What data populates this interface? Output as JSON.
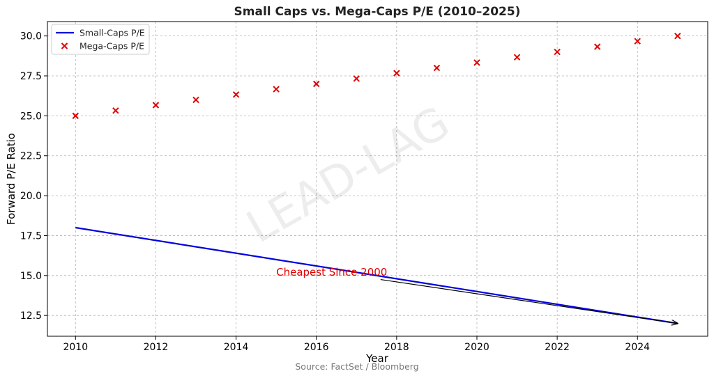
{
  "chart_data": {
    "type": "line",
    "title": "Small Caps vs. Mega-Caps P/E (2010–2025)",
    "xlabel": "Year",
    "ylabel": "Forward P/E Ratio",
    "xlim": [
      2009.3,
      2025.75
    ],
    "ylim": [
      11.2,
      30.9
    ],
    "x_ticks": [
      2010,
      2012,
      2014,
      2016,
      2018,
      2020,
      2022,
      2024
    ],
    "y_ticks": [
      12.5,
      15.0,
      17.5,
      20.0,
      22.5,
      25.0,
      27.5,
      30.0
    ],
    "y_tick_labels": [
      "12.5",
      "15.0",
      "17.5",
      "20.0",
      "22.5",
      "25.0",
      "27.5",
      "30.0"
    ],
    "grid": true,
    "legend_position": "top-left",
    "series": [
      {
        "name": "Small-Caps P/E",
        "kind": "line",
        "color": "#0000dd",
        "x": [
          2010,
          2025
        ],
        "y": [
          18.0,
          12.0
        ]
      },
      {
        "name": "Mega-Caps P/E",
        "kind": "scatter",
        "marker": "x",
        "color": "#e00000",
        "x": [
          2010,
          2011,
          2012,
          2013,
          2014,
          2015,
          2016,
          2017,
          2018,
          2019,
          2020,
          2021,
          2022,
          2023,
          2024,
          2025
        ],
        "y": [
          25.0,
          25.33,
          25.67,
          26.0,
          26.33,
          26.67,
          27.0,
          27.33,
          27.67,
          28.0,
          28.33,
          28.67,
          29.0,
          29.33,
          29.67,
          30.0
        ]
      }
    ],
    "annotation": {
      "text": "Cheapest Since 2000",
      "color": "#e00000",
      "text_at": [
        2015,
        15.0
      ],
      "arrow_from": [
        2017.6,
        14.75
      ],
      "arrow_to": [
        2025,
        12.0
      ]
    },
    "watermark": "LEAD-LAG",
    "source": "Source: FactSet / Bloomberg"
  }
}
